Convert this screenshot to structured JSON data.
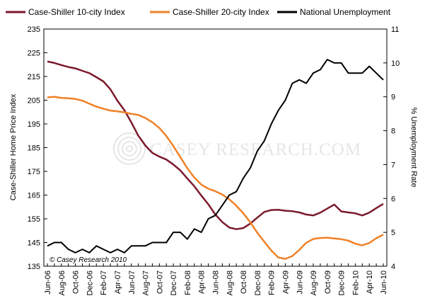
{
  "chart_data": {
    "type": "line",
    "legend": {
      "placement": "top",
      "entries": [
        "Case-Shiller 10-city Index",
        "Case-Shiller 20-city Index",
        "National Unemployment"
      ]
    },
    "ylabel": "Case-Shiller Home Price Index",
    "y2label": "% Unemployment Rate",
    "ylim": [
      135,
      235
    ],
    "y2lim": [
      4,
      11
    ],
    "yticks": [
      "135",
      "145",
      "155",
      "165",
      "175",
      "185",
      "195",
      "205",
      "215",
      "225",
      "235"
    ],
    "y2ticks": [
      "4",
      "5",
      "6",
      "7",
      "8",
      "9",
      "10",
      "11"
    ],
    "x": [
      "Jun-06",
      "Jul-06",
      "Aug-06",
      "Sep-06",
      "Oct-06",
      "Nov-06",
      "Dec-06",
      "Jan-07",
      "Feb-07",
      "Mar-07",
      "Apr-07",
      "May-07",
      "Jun-07",
      "Jul-07",
      "Aug-07",
      "Sep-07",
      "Oct-07",
      "Nov-07",
      "Dec-07",
      "Jan-08",
      "Feb-08",
      "Mar-08",
      "Apr-08",
      "May-08",
      "Jun-08",
      "Jul-08",
      "Aug-08",
      "Sep-08",
      "Oct-08",
      "Nov-08",
      "Dec-08",
      "Jan-09",
      "Feb-09",
      "Mar-09",
      "Apr-09",
      "May-09",
      "Jun-09",
      "Jul-09",
      "Aug-09",
      "Sep-09",
      "Oct-09",
      "Nov-09",
      "Dec-09",
      "Jan-10",
      "Feb-10",
      "Mar-10",
      "Apr-10",
      "May-10",
      "Jun-10"
    ],
    "xticks": [
      "Jun-06",
      "Aug-06",
      "Oct-06",
      "Dec-06",
      "Feb-07",
      "Apr-07",
      "Jun-07",
      "Aug-07",
      "Oct-07",
      "Dec-07",
      "Feb-08",
      "Apr-08",
      "Jun-08",
      "Aug-08",
      "Oct-08",
      "Dec-08",
      "Feb-09",
      "Apr-09",
      "Jun-09",
      "Aug-09",
      "Oct-09",
      "Dec-09",
      "Feb-10",
      "Apr-10",
      "Jun-10"
    ],
    "grid": false,
    "series": [
      {
        "name": "Case-Shiller 10-city Index",
        "axis": "left",
        "color": "#7b1a2c",
        "values": [
          221.3,
          220.7,
          219.8,
          219.0,
          218.4,
          217.4,
          216.4,
          214.7,
          212.9,
          209.6,
          204.8,
          200.8,
          195.6,
          190.0,
          185.9,
          182.8,
          181.2,
          180.0,
          177.9,
          175.4,
          172.0,
          168.7,
          164.8,
          161.1,
          156.8,
          153.6,
          151.3,
          150.6,
          151.1,
          153.0,
          155.5,
          157.9,
          158.7,
          158.8,
          158.4,
          158.2,
          157.7,
          156.8,
          156.4,
          157.6,
          159.3,
          161.0,
          158.1,
          157.7,
          157.3,
          156.4,
          157.6,
          159.5,
          161.3
        ]
      },
      {
        "name": "Case-Shiller 20-city Index",
        "axis": "left",
        "color": "#f08127",
        "values": [
          206.2,
          206.4,
          206.0,
          205.8,
          205.5,
          204.8,
          203.5,
          202.3,
          201.4,
          200.6,
          200.3,
          199.9,
          199.2,
          198.8,
          197.5,
          195.7,
          193.3,
          189.9,
          185.7,
          181.0,
          176.3,
          172.4,
          169.4,
          167.7,
          166.6,
          165.2,
          163.2,
          160.5,
          157.3,
          153.5,
          149.1,
          145.3,
          141.6,
          138.7,
          138.1,
          139.3,
          141.9,
          144.9,
          146.5,
          146.9,
          147.0,
          146.7,
          146.4,
          145.8,
          144.5,
          143.8,
          144.8,
          146.8,
          148.3
        ]
      },
      {
        "name": "National Unemployment",
        "axis": "right",
        "color": "#000000",
        "values": [
          4.6,
          4.7,
          4.7,
          4.5,
          4.4,
          4.5,
          4.4,
          4.6,
          4.5,
          4.4,
          4.5,
          4.4,
          4.6,
          4.6,
          4.6,
          4.7,
          4.7,
          4.7,
          5.0,
          5.0,
          4.8,
          5.1,
          5.0,
          5.4,
          5.5,
          5.8,
          6.1,
          6.2,
          6.6,
          6.9,
          7.4,
          7.7,
          8.2,
          8.6,
          8.9,
          9.4,
          9.5,
          9.4,
          9.7,
          9.8,
          10.1,
          10.0,
          10.0,
          9.7,
          9.7,
          9.7,
          9.9,
          9.7,
          9.5
        ]
      }
    ],
    "annotation": "© Casey Research 2010"
  },
  "watermark": {
    "text": "CASEY RESEARCH.COM",
    "color": "#e6e6e6"
  },
  "colors": {
    "axis": "#000000",
    "background": "#ffffff"
  }
}
